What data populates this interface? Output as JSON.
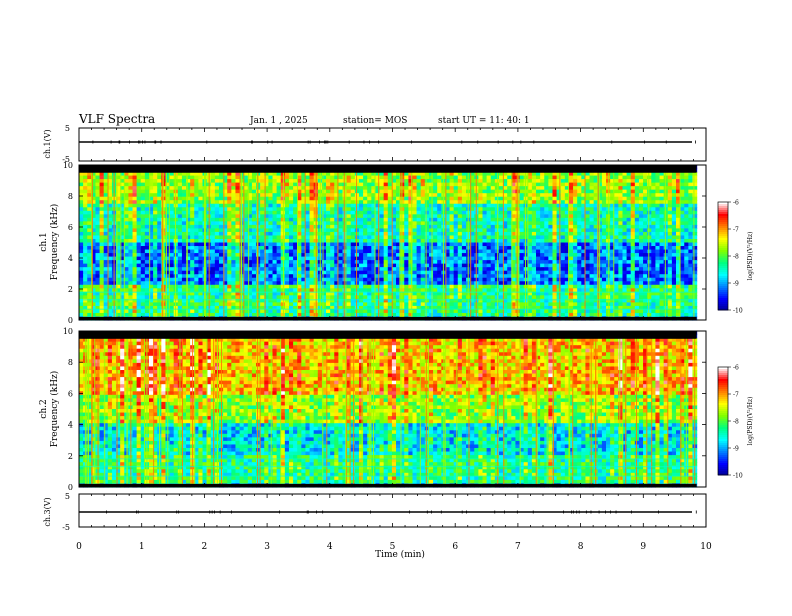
{
  "header": {
    "title": "VLF Spectra",
    "date": "Jan. 1 , 2025",
    "station": "station= MOS",
    "start": "start UT = 11: 40: 1"
  },
  "chart_data": [
    {
      "type": "line",
      "name": "waveform-ch1",
      "ylabel": "ch.1(V)",
      "ylim": [
        -5,
        5
      ],
      "yticks": [
        "5",
        "-5"
      ],
      "xlim": [
        0,
        10
      ],
      "series": [
        {
          "values_level": 0
        }
      ]
    },
    {
      "type": "heatmap",
      "name": "spectrogram-ch1",
      "ylabel_top": "ch.1",
      "ylabel": "Frequency (kHz)",
      "ylim": [
        0,
        10
      ],
      "yticks": [
        "0",
        "2",
        "4",
        "6",
        "8",
        "10"
      ],
      "xlim": [
        0,
        10
      ],
      "data_end_min": 9.85,
      "colorbar": {
        "label": "log(PSD)(V²/Hz)",
        "range": [
          -10,
          -6
        ],
        "ticks": [
          "-6",
          "-7",
          "-8",
          "-9",
          "-10"
        ]
      }
    },
    {
      "type": "heatmap",
      "name": "spectrogram-ch2",
      "ylabel_top": "ch.2",
      "ylabel": "Frequency (kHz)",
      "ylim": [
        0,
        10
      ],
      "yticks": [
        "0",
        "2",
        "4",
        "6",
        "8",
        "10"
      ],
      "xlim": [
        0,
        10
      ],
      "data_end_min": 9.85,
      "colorbar": {
        "label": "log(PSD)(V²/Hz)",
        "range": [
          -10,
          -6
        ],
        "ticks": [
          "-6",
          "-7",
          "-8",
          "-9",
          "-10"
        ]
      }
    },
    {
      "type": "line",
      "name": "waveform-ch3",
      "ylabel": "ch.3(V)",
      "ylim": [
        -5,
        5
      ],
      "yticks": [
        "5",
        "-5"
      ],
      "xlim": [
        0,
        10
      ],
      "xlabel": "Time (min)",
      "xticks": [
        "0",
        "1",
        "2",
        "3",
        "4",
        "5",
        "6",
        "7",
        "8",
        "9",
        "10"
      ],
      "series": [
        {
          "values_level": 0
        }
      ]
    }
  ],
  "colors": {
    "colormap": [
      "#00008f",
      "#0000ff",
      "#0080ff",
      "#00ffff",
      "#00ff80",
      "#80ff00",
      "#ffff00",
      "#ff8000",
      "#ff0000",
      "#ffffff"
    ]
  }
}
